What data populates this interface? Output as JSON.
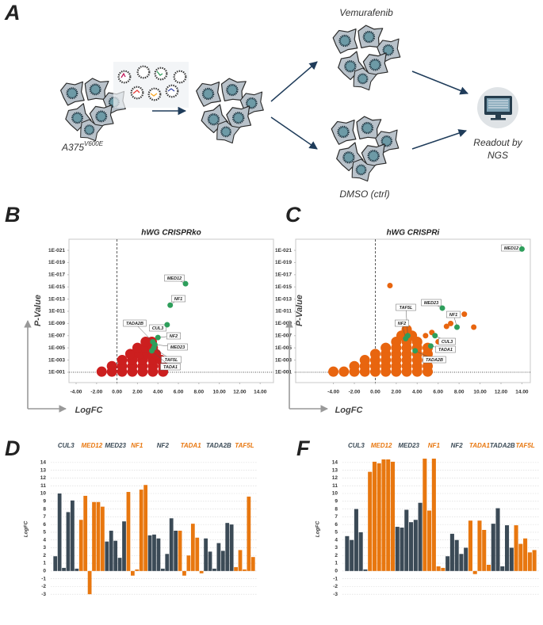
{
  "panel_labels": [
    "A",
    "B",
    "C",
    "D",
    "F"
  ],
  "diagram": {
    "cell_line_label": "A375",
    "cell_line_superscript": "V600E",
    "treatment_label": "Vemurafenib",
    "control_label": "DMSO (ctrl)",
    "readout_label": [
      "Readout by",
      "NGS"
    ]
  },
  "chart_data": [
    {
      "type": "scatter",
      "title": "hWG CRISPRko",
      "xlabel": "LogFC",
      "ylabel": "P-Value",
      "xlim": [
        -4.7,
        15.3
      ],
      "ylim": [
        5,
        1.5e-23
      ],
      "yscale": "log",
      "xticks": [
        {
          "value": -4,
          "label": "-4.00"
        },
        {
          "value": -2,
          "label": "-2.00"
        },
        {
          "value": 0,
          "label": "0.00"
        },
        {
          "value": 2,
          "label": "2.00"
        },
        {
          "value": 4,
          "label": "4.00"
        },
        {
          "value": 6,
          "label": "6.00"
        },
        {
          "value": 8,
          "label": "8.00"
        },
        {
          "value": 10,
          "label": "10.00"
        },
        {
          "value": 12,
          "label": "12.00"
        },
        {
          "value": 14,
          "label": "14.00"
        }
      ],
      "yticks": [
        {
          "value": 0.1,
          "label": "1E-001"
        },
        {
          "value": 0.001,
          "label": "1E-003"
        },
        {
          "value": 1e-05,
          "label": "1E-005"
        },
        {
          "value": 1e-07,
          "label": "1E-007"
        },
        {
          "value": 1e-09,
          "label": "1E-009"
        },
        {
          "value": 1e-11,
          "label": "1E-011"
        },
        {
          "value": 1e-13,
          "label": "1E-013"
        },
        {
          "value": 1e-15,
          "label": "1E-015"
        },
        {
          "value": 1e-17,
          "label": "1E-017"
        },
        {
          "value": 1e-19,
          "label": "1E-019"
        },
        {
          "value": 1e-21,
          "label": "1E-021"
        }
      ],
      "reference_lines": {
        "x": 0,
        "y": 0.1
      },
      "series": [
        {
          "color": "#cc1f1f",
          "marker_size": 6.5,
          "x": [
            -1.5,
            -0.5,
            0.5,
            1.5,
            2.5,
            3.5,
            4.5,
            -0.5,
            0.5,
            1.5,
            2.5,
            3.5,
            4.5,
            0.5,
            1.5,
            2.5,
            3.5,
            4.3,
            1.3,
            2.2,
            3.0,
            3.8,
            2.0,
            2.8,
            3.5,
            2.8,
            3.4
          ],
          "y": [
            0.08,
            0.08,
            0.08,
            0.08,
            0.08,
            0.08,
            0.08,
            0.01,
            0.01,
            0.01,
            0.01,
            0.01,
            0.01,
            0.001,
            0.001,
            0.001,
            0.001,
            0.001,
            0.0001,
            0.0001,
            0.0001,
            0.0001,
            1e-05,
            1e-05,
            1e-05,
            1e-06,
            1e-06
          ]
        },
        {
          "color": "#2e9e5b",
          "marker_size": 3.5,
          "labels": [
            "MED12",
            "NF1",
            "CUL3",
            "NF2",
            "TADA2B",
            "MED23",
            "TAF5L",
            "TADA1"
          ],
          "x": [
            6.7,
            5.2,
            4.9,
            4.0,
            3.5,
            3.7,
            3.6,
            3.4
          ],
          "y": [
            3e-16,
            1e-12,
            1.6e-09,
            2e-07,
            1e-06,
            3e-06,
            1e-05,
            3e-05
          ]
        }
      ]
    },
    {
      "type": "scatter",
      "title": "hWG CRISPRi",
      "xlabel": "LogFC",
      "ylabel": "P-Value",
      "xlim": [
        -7.6,
        14.8
      ],
      "ylim": [
        5,
        1.5e-23
      ],
      "yscale": "log",
      "xticks": [
        {
          "value": -4,
          "label": "-4.00"
        },
        {
          "value": -2,
          "label": "-2.00"
        },
        {
          "value": 0,
          "label": "0.00"
        },
        {
          "value": 2,
          "label": "2.00"
        },
        {
          "value": 4,
          "label": "4.00"
        },
        {
          "value": 6,
          "label": "6.00"
        },
        {
          "value": 8,
          "label": "8.00"
        },
        {
          "value": 10,
          "label": "10.00"
        },
        {
          "value": 12,
          "label": "12.00"
        },
        {
          "value": 14,
          "label": "14.00"
        }
      ],
      "yticks": [
        {
          "value": 0.1,
          "label": "1E-001"
        },
        {
          "value": 0.001,
          "label": "1E-003"
        },
        {
          "value": 1e-05,
          "label": "1E-005"
        },
        {
          "value": 1e-07,
          "label": "1E-007"
        },
        {
          "value": 1e-09,
          "label": "1E-009"
        },
        {
          "value": 1e-11,
          "label": "1E-011"
        },
        {
          "value": 1e-13,
          "label": "1E-013"
        },
        {
          "value": 1e-15,
          "label": "1E-015"
        },
        {
          "value": 1e-17,
          "label": "1E-017"
        },
        {
          "value": 1e-19,
          "label": "1E-019"
        },
        {
          "value": 1e-21,
          "label": "1E-021"
        }
      ],
      "reference_lines": {
        "x": 0,
        "y": 0.1
      },
      "series": [
        {
          "color": "#e8650f",
          "marker_size": 6.5,
          "x": [
            -4,
            -3,
            -2,
            -1,
            0,
            1,
            2,
            3,
            4,
            5,
            -2,
            -1,
            0,
            1,
            2,
            3,
            4,
            5,
            -1,
            0,
            1,
            2,
            3,
            4,
            5,
            0,
            1,
            2,
            3,
            4,
            5,
            1,
            2,
            3,
            4,
            5,
            2,
            3,
            4,
            2.5,
            3.5,
            3
          ],
          "y": [
            0.08,
            0.08,
            0.08,
            0.08,
            0.08,
            0.08,
            0.08,
            0.08,
            0.08,
            0.08,
            0.01,
            0.01,
            0.01,
            0.01,
            0.01,
            0.01,
            0.01,
            0.01,
            0.001,
            0.001,
            0.001,
            0.001,
            0.001,
            0.001,
            0.001,
            0.0001,
            0.0001,
            0.0001,
            0.0001,
            0.0001,
            0.0001,
            1e-05,
            1e-05,
            1e-05,
            1e-05,
            1e-05,
            1e-06,
            1e-06,
            1e-06,
            1e-07,
            1e-07,
            1e-08
          ]
        },
        {
          "color": "#e8650f",
          "marker_size": 3.5,
          "x": [
            1.4,
            9.4,
            8.5,
            7.2,
            6.8,
            5.4,
            4.8,
            6.0
          ],
          "y": [
            6e-16,
            4e-09,
            3e-11,
            1e-09,
            3e-09,
            3e-08,
            1e-07,
            1e-06
          ]
        },
        {
          "color": "#2e9e5b",
          "marker_size": 3.5,
          "labels": [
            "MED12",
            "NF1",
            "MED23",
            "CUL3",
            "TADA1",
            "TADA2B",
            "TAF5L",
            "NF2"
          ],
          "x": [
            14.0,
            7.8,
            6.4,
            5.7,
            5.3,
            3.8,
            3.1,
            2.9
          ],
          "y": [
            6e-22,
            4e-09,
            3e-12,
            1e-07,
            5e-06,
            3e-05,
            1e-07,
            3e-07
          ]
        }
      ]
    },
    {
      "type": "bar",
      "ylabel": "LogFC",
      "ylim": [
        -3.7,
        14.6
      ],
      "yticks": [
        -3,
        -2,
        -1,
        0,
        1,
        2,
        3,
        4,
        5,
        6,
        7,
        8,
        9,
        10,
        11,
        12,
        13,
        14
      ],
      "grid": true,
      "series": [
        {
          "name": "CUL3",
          "color": "#3b4a56",
          "values": [
            1.9,
            10.0,
            0.4,
            7.6,
            9.1,
            0.3
          ]
        },
        {
          "name": "MED12",
          "color": "#e8770f",
          "values": [
            6.6,
            9.7,
            -3.0,
            8.9,
            8.9,
            8.3
          ]
        },
        {
          "name": "MED23",
          "color": "#3b4a56",
          "values": [
            3.8,
            5.2,
            3.9,
            1.7,
            6.4
          ]
        },
        {
          "name": "NF1",
          "color": "#e8770f",
          "values": [
            10.2,
            -0.6,
            0.2,
            10.5,
            11.1
          ]
        },
        {
          "name": "NF2",
          "color": "#3b4a56",
          "values": [
            4.6,
            4.7,
            4.2,
            0.3,
            2.2,
            6.8,
            5.2
          ]
        },
        {
          "name": "TADA1",
          "color": "#e8770f",
          "values": [
            5.2,
            -0.6,
            2.0,
            6.1,
            4.3,
            -0.3
          ]
        },
        {
          "name": "TADA2B",
          "color": "#3b4a56",
          "values": [
            4.2,
            2.5,
            0.3,
            3.6,
            2.6,
            6.2,
            6.0
          ]
        },
        {
          "name": "TAF5L",
          "color": "#e8770f",
          "values": [
            0.5,
            2.7,
            0.2,
            9.6,
            1.8
          ]
        }
      ]
    },
    {
      "type": "bar",
      "ylabel": "LogFC",
      "ylim": [
        -3.7,
        14.6
      ],
      "yticks": [
        -3,
        -2,
        -1,
        0,
        1,
        2,
        3,
        4,
        5,
        6,
        7,
        8,
        9,
        10,
        11,
        12,
        13,
        14
      ],
      "grid": true,
      "series": [
        {
          "name": "CUL3",
          "color": "#3b4a56",
          "values": [
            4.5,
            4.0,
            8.0,
            5.0,
            0.2
          ]
        },
        {
          "name": "MED12",
          "color": "#e8770f",
          "values": [
            12.8,
            14.1,
            13.9,
            14.4,
            14.4,
            14.1
          ]
        },
        {
          "name": "MED23",
          "color": "#3b4a56",
          "values": [
            5.7,
            5.6,
            7.9,
            6.3,
            6.6,
            8.8
          ]
        },
        {
          "name": "NF1",
          "color": "#e8770f",
          "values": [
            14.5,
            7.8,
            14.5,
            0.6,
            0.4
          ]
        },
        {
          "name": "NF2",
          "color": "#3b4a56",
          "values": [
            1.9,
            4.8,
            4.0,
            2.2,
            3.0
          ]
        },
        {
          "name": "TADA1",
          "color": "#e8770f",
          "values": [
            6.5,
            -0.4,
            6.5,
            5.3,
            0.8
          ]
        },
        {
          "name": "TADA2B",
          "color": "#3b4a56",
          "values": [
            6.1,
            8.1,
            0.6,
            5.9,
            3.0
          ]
        },
        {
          "name": "TAF5L",
          "color": "#e8770f",
          "values": [
            5.9,
            3.5,
            4.2,
            2.4,
            2.7
          ]
        }
      ]
    }
  ]
}
